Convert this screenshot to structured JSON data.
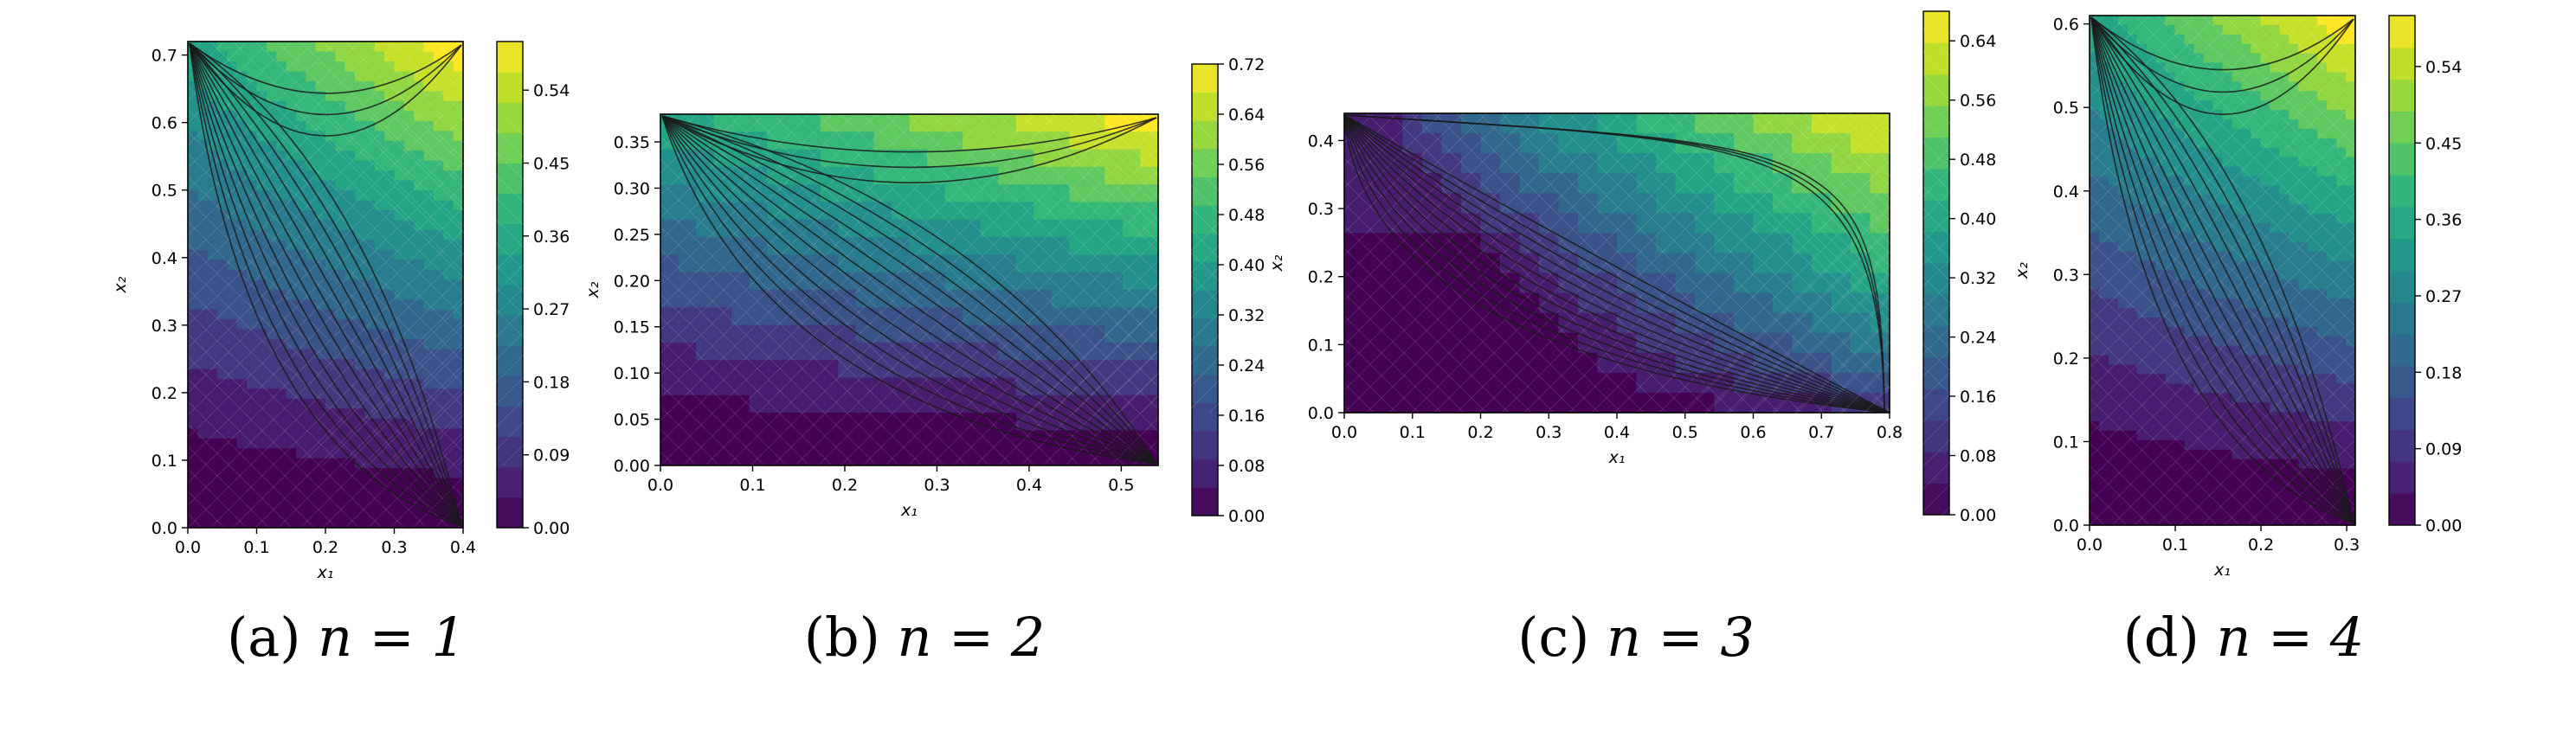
{
  "colors": {
    "viridis": [
      "#440154",
      "#482878",
      "#3e4989",
      "#31688e",
      "#26828e",
      "#1f9e89",
      "#35b779",
      "#6ece58",
      "#b5de2b",
      "#fde725"
    ],
    "contour_line": "#1a1a1a",
    "mesh_line": "#ffffff"
  },
  "chart_data": [
    {
      "type": "heatmap",
      "caption_label": "(a)",
      "caption_math": "n = 1",
      "xlabel": "x₁",
      "ylabel": "x₂",
      "xlim": [
        0,
        0.4
      ],
      "ylim": [
        0,
        0.72
      ],
      "xticks": [
        "0.0",
        "0.1",
        "0.2",
        "0.3",
        "0.4"
      ],
      "yticks": [
        "0.0",
        "0.1",
        "0.2",
        "0.3",
        "0.4",
        "0.5",
        "0.6",
        "0.7"
      ],
      "colorbar_ticks": [
        "0.00",
        "0.09",
        "0.18",
        "0.27",
        "0.36",
        "0.45",
        "0.54"
      ],
      "colorbar_range": [
        0,
        0.6
      ],
      "contour_levels": 16,
      "max_location": "top",
      "grid": false
    },
    {
      "type": "heatmap",
      "caption_label": "(b)",
      "caption_math": "n = 2",
      "xlabel": "x₁",
      "ylabel": "x₂",
      "xlim": [
        0,
        0.54
      ],
      "ylim": [
        0,
        0.38
      ],
      "xticks": [
        "0.0",
        "0.1",
        "0.2",
        "0.3",
        "0.4",
        "0.5"
      ],
      "yticks": [
        "0.00",
        "0.05",
        "0.10",
        "0.15",
        "0.20",
        "0.25",
        "0.30",
        "0.35"
      ],
      "colorbar_ticks": [
        "0.00",
        "0.08",
        "0.16",
        "0.24",
        "0.32",
        "0.40",
        "0.48",
        "0.56",
        "0.64",
        "0.72"
      ],
      "colorbar_range": [
        0,
        0.72
      ],
      "contour_levels": 16,
      "max_location": "top",
      "grid": false
    },
    {
      "type": "heatmap",
      "caption_label": "(c)",
      "caption_math": "n = 3",
      "xlabel": "x₁",
      "ylabel": "x₂",
      "xlim": [
        0,
        0.8
      ],
      "ylim": [
        0,
        0.44
      ],
      "xticks": [
        "0.0",
        "0.1",
        "0.2",
        "0.3",
        "0.4",
        "0.5",
        "0.6",
        "0.7",
        "0.8"
      ],
      "yticks": [
        "0.0",
        "0.1",
        "0.2",
        "0.3",
        "0.4"
      ],
      "colorbar_ticks": [
        "0.00",
        "0.08",
        "0.16",
        "0.24",
        "0.32",
        "0.40",
        "0.48",
        "0.56",
        "0.64"
      ],
      "colorbar_range": [
        0,
        0.68
      ],
      "contour_levels": 16,
      "max_location": "right",
      "grid": false
    },
    {
      "type": "heatmap",
      "caption_label": "(d)",
      "caption_math": "n = 4",
      "xlabel": "x₁",
      "ylabel": "x₂",
      "xlim": [
        0,
        0.31
      ],
      "ylim": [
        0,
        0.61
      ],
      "xticks": [
        "0.0",
        "0.1",
        "0.2",
        "0.3"
      ],
      "yticks": [
        "0.0",
        "0.1",
        "0.2",
        "0.3",
        "0.4",
        "0.5",
        "0.6"
      ],
      "colorbar_ticks": [
        "0.00",
        "0.09",
        "0.18",
        "0.27",
        "0.36",
        "0.45",
        "0.54"
      ],
      "colorbar_range": [
        0,
        0.6
      ],
      "contour_levels": 16,
      "max_location": "top",
      "grid": false
    }
  ]
}
